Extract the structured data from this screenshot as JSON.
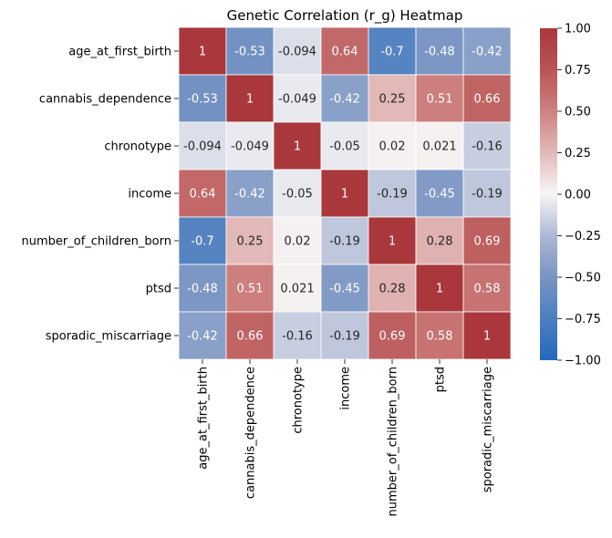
{
  "chart_data": {
    "type": "heatmap",
    "title": "Genetic Correlation (r_g) Heatmap",
    "xlabel": "",
    "ylabel": "",
    "rows": [
      "age_at_first_birth",
      "cannabis_dependence",
      "chronotype",
      "income",
      "number_of_children_born",
      "ptsd",
      "sporadic_miscarriage"
    ],
    "cols": [
      "age_at_first_birth",
      "cannabis_dependence",
      "chronotype",
      "income",
      "number_of_children_born",
      "ptsd",
      "sporadic_miscarriage"
    ],
    "values": [
      [
        1,
        -0.53,
        -0.094,
        0.64,
        -0.7,
        -0.48,
        -0.42
      ],
      [
        -0.53,
        1,
        -0.049,
        -0.42,
        0.25,
        0.51,
        0.66
      ],
      [
        -0.094,
        -0.049,
        1,
        -0.05,
        0.02,
        0.021,
        -0.16
      ],
      [
        0.64,
        -0.42,
        -0.05,
        1,
        -0.19,
        -0.45,
        -0.19
      ],
      [
        -0.7,
        0.25,
        0.02,
        -0.19,
        1,
        0.28,
        0.69
      ],
      [
        -0.48,
        0.51,
        0.021,
        -0.45,
        0.28,
        1,
        0.58
      ],
      [
        -0.42,
        0.66,
        -0.16,
        -0.19,
        0.69,
        0.58,
        1
      ]
    ],
    "labels": [
      [
        "1",
        "-0.53",
        "-0.094",
        "0.64",
        "-0.7",
        "-0.48",
        "-0.42"
      ],
      [
        "-0.53",
        "1",
        "-0.049",
        "-0.42",
        "0.25",
        "0.51",
        "0.66"
      ],
      [
        "-0.094",
        "-0.049",
        "1",
        "-0.05",
        "0.02",
        "0.021",
        "-0.16"
      ],
      [
        "0.64",
        "-0.42",
        "-0.05",
        "1",
        "-0.19",
        "-0.45",
        "-0.19"
      ],
      [
        "-0.7",
        "0.25",
        "0.02",
        "-0.19",
        "1",
        "0.28",
        "0.69"
      ],
      [
        "-0.48",
        "0.51",
        "0.021",
        "-0.45",
        "0.28",
        "1",
        "0.58"
      ],
      [
        "-0.42",
        "0.66",
        "-0.16",
        "-0.19",
        "0.69",
        "0.58",
        "1"
      ]
    ],
    "colorbar": {
      "range": [
        -1,
        1
      ],
      "ticks": [
        "1.00",
        "0.75",
        "0.50",
        "0.25",
        "0.00",
        "−0.25",
        "−0.50",
        "−0.75",
        "−1.00"
      ],
      "colormap": "vlag",
      "colors": {
        "low": "#2369bd",
        "mid": "#f8f6f6",
        "high": "#a9373b"
      }
    },
    "grid": true,
    "legend": "none"
  }
}
